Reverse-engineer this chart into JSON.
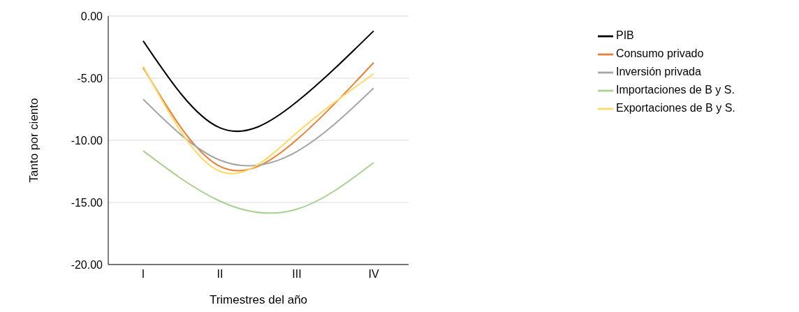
{
  "chart_data": {
    "type": "line",
    "xlabel": "Trimestres del año",
    "ylabel": "Tanto por ciento",
    "categories": [
      "I",
      "II",
      "III",
      "IV"
    ],
    "series": [
      {
        "name": "PIB",
        "color": "#000000",
        "values": [
          -2.0,
          -9.0,
          -6.9,
          -1.2
        ]
      },
      {
        "name": "Consumo privado",
        "color": "#ed7d31",
        "values": [
          -4.15,
          -12.1,
          -9.95,
          -3.75
        ]
      },
      {
        "name": "Inversión privada",
        "color": "#a5a5a5",
        "values": [
          -6.7,
          -11.6,
          -10.9,
          -5.8
        ]
      },
      {
        "name": "Importaciones de B y S.",
        "color": "#a9d18e",
        "values": [
          -10.85,
          -14.9,
          -15.55,
          -11.8
        ]
      },
      {
        "name": "Exportaciones de B y S.",
        "color": "#ffd966",
        "values": [
          -4.05,
          -12.5,
          -9.4,
          -4.65
        ]
      }
    ],
    "ylim": [
      -20,
      0
    ],
    "yticks": [
      {
        "value": -20,
        "label": "-20.00"
      },
      {
        "value": -15,
        "label": "-15.00"
      },
      {
        "value": -10,
        "label": "-10.00"
      },
      {
        "value": -5,
        "label": "-5.00"
      },
      {
        "value": 0,
        "label": "0.00"
      }
    ],
    "grid": "y",
    "legend": "right",
    "marker": "none",
    "line_style": "solid"
  }
}
